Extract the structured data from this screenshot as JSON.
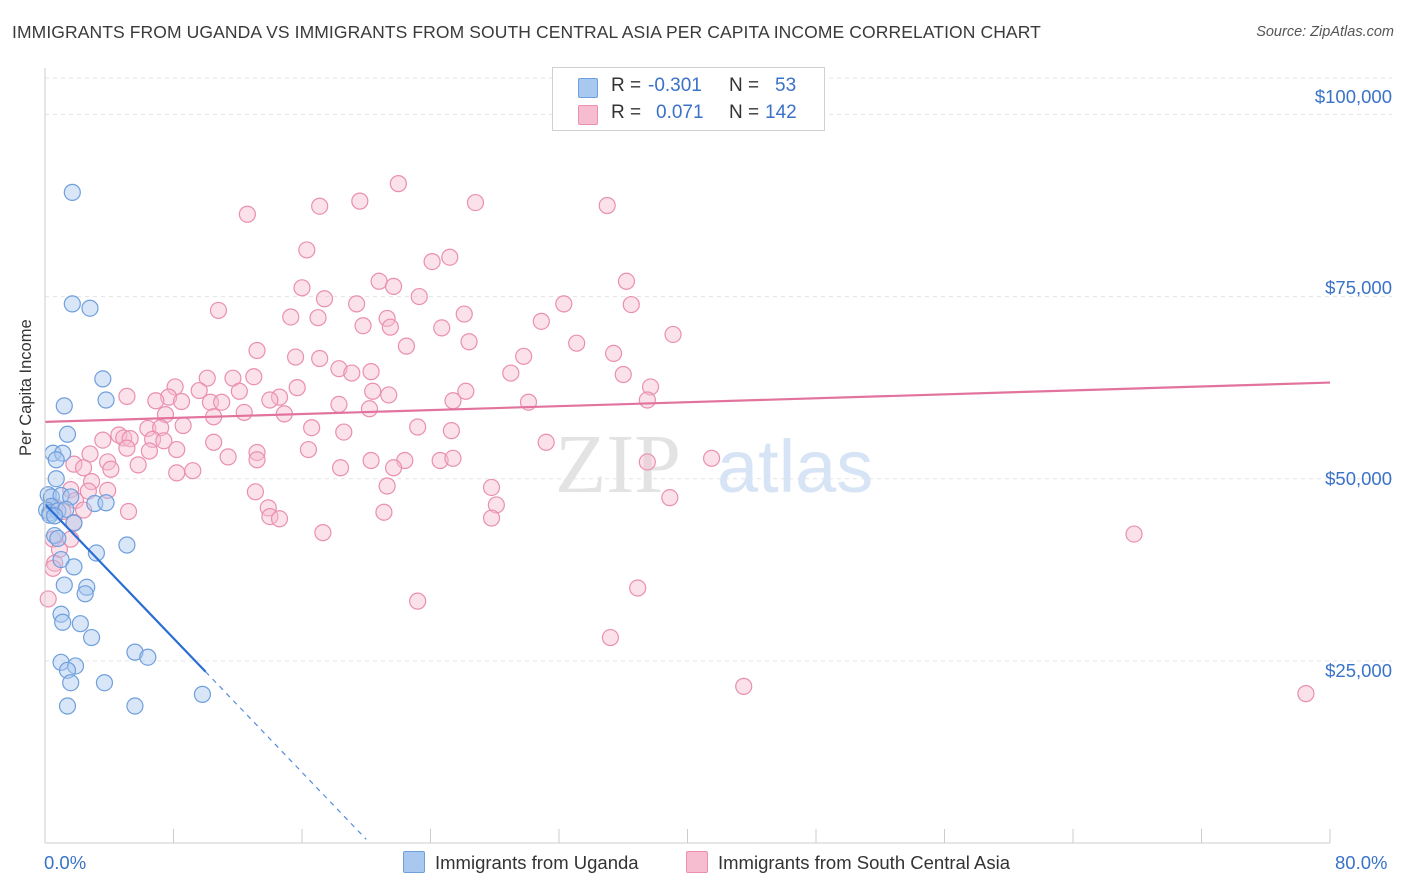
{
  "title": "IMMIGRANTS FROM UGANDA VS IMMIGRANTS FROM SOUTH CENTRAL ASIA PER CAPITA INCOME CORRELATION CHART",
  "source": "Source: ZipAtlas.com",
  "watermark": {
    "zip": "ZIP",
    "atlas": "atlas"
  },
  "colors": {
    "uganda_fill": "#a9c8f0",
    "uganda_stroke": "#6f9fdc",
    "uganda_line": "#2a6ed4",
    "sca_fill": "#f6bcd0",
    "sca_stroke": "#ea8fb0",
    "sca_line": "#e2739d",
    "grid": "#e4e4e4",
    "axis": "#cccccc",
    "accent": "#3a72c8"
  },
  "legend": {
    "rows": [
      {
        "r_label": "R =",
        "r_value": "-0.301",
        "n_label": "N =",
        "n_value": "53"
      },
      {
        "r_label": "R =",
        "r_value": "0.071",
        "n_label": "N =",
        "n_value": "142"
      }
    ]
  },
  "chart_data": {
    "type": "scatter",
    "title": "IMMIGRANTS FROM UGANDA VS IMMIGRANTS FROM SOUTH CENTRAL ASIA PER CAPITA INCOME CORRELATION CHART",
    "xlabel": "",
    "ylabel": "Per Capita Income",
    "xlim": [
      0,
      80
    ],
    "ylim": [
      0,
      105000
    ],
    "x_tick_labels": [
      "0.0%",
      "80.0%"
    ],
    "y_ticks": [
      25000,
      50000,
      75000,
      100000
    ],
    "y_tick_labels": [
      "$25,000",
      "$50,000",
      "$75,000",
      "$100,000"
    ],
    "legend_position": "top-center",
    "series": [
      {
        "name": "Immigrants from Uganda",
        "r": -0.301,
        "n": 53,
        "trend": {
          "x0": 0,
          "y0": 46500,
          "x1": 10,
          "y1": 23500,
          "dash_to_x": 20
        },
        "points": [
          [
            1.7,
            89300
          ],
          [
            1.7,
            74000
          ],
          [
            2.8,
            73400
          ],
          [
            3.6,
            63700
          ],
          [
            3.8,
            60800
          ],
          [
            1.2,
            60000
          ],
          [
            1.4,
            56100
          ],
          [
            0.5,
            53500
          ],
          [
            1.1,
            53500
          ],
          [
            0.7,
            52600
          ],
          [
            0.7,
            50000
          ],
          [
            0.2,
            47800
          ],
          [
            0.4,
            47500
          ],
          [
            1.0,
            47700
          ],
          [
            1.6,
            47500
          ],
          [
            3.1,
            46600
          ],
          [
            3.8,
            46700
          ],
          [
            0.4,
            46200
          ],
          [
            0.1,
            45700
          ],
          [
            0.3,
            45300
          ],
          [
            0.8,
            45600
          ],
          [
            1.3,
            45800
          ],
          [
            0.3,
            45000
          ],
          [
            0.6,
            44900
          ],
          [
            1.8,
            43900
          ],
          [
            0.6,
            42200
          ],
          [
            0.8,
            41800
          ],
          [
            5.1,
            40900
          ],
          [
            3.2,
            39800
          ],
          [
            1.0,
            38900
          ],
          [
            1.8,
            37900
          ],
          [
            1.2,
            35400
          ],
          [
            2.6,
            35100
          ],
          [
            2.5,
            34200
          ],
          [
            1.0,
            31400
          ],
          [
            1.1,
            30300
          ],
          [
            2.2,
            30100
          ],
          [
            2.9,
            28200
          ],
          [
            5.6,
            26200
          ],
          [
            6.4,
            25500
          ],
          [
            1.0,
            24800
          ],
          [
            1.9,
            24300
          ],
          [
            1.4,
            23700
          ],
          [
            1.6,
            22000
          ],
          [
            3.7,
            22000
          ],
          [
            9.8,
            20400
          ],
          [
            1.4,
            18800
          ],
          [
            5.6,
            18800
          ]
        ]
      },
      {
        "name": "Immigrants from South Central Asia",
        "r": 0.071,
        "n": 142,
        "trend": {
          "x0": 0,
          "y0": 57800,
          "x1": 80,
          "y1": 63200
        },
        "points": [
          [
            22.0,
            90500
          ],
          [
            19.6,
            88100
          ],
          [
            35.0,
            87500
          ],
          [
            26.8,
            87900
          ],
          [
            12.6,
            86300
          ],
          [
            17.1,
            87400
          ],
          [
            16.3,
            81400
          ],
          [
            25.2,
            80400
          ],
          [
            24.1,
            79800
          ],
          [
            36.2,
            77100
          ],
          [
            20.8,
            77100
          ],
          [
            21.7,
            76400
          ],
          [
            16.0,
            76200
          ],
          [
            23.3,
            75000
          ],
          [
            17.4,
            74700
          ],
          [
            19.4,
            74000
          ],
          [
            32.3,
            74000
          ],
          [
            36.5,
            73900
          ],
          [
            10.8,
            73100
          ],
          [
            15.3,
            72200
          ],
          [
            17.0,
            72100
          ],
          [
            26.1,
            72600
          ],
          [
            21.3,
            72000
          ],
          [
            30.9,
            71600
          ],
          [
            19.8,
            71000
          ],
          [
            21.5,
            70800
          ],
          [
            24.7,
            70700
          ],
          [
            39.1,
            69800
          ],
          [
            26.4,
            68800
          ],
          [
            22.5,
            68200
          ],
          [
            33.1,
            68600
          ],
          [
            35.4,
            67200
          ],
          [
            13.2,
            67600
          ],
          [
            15.6,
            66700
          ],
          [
            17.1,
            66500
          ],
          [
            29.8,
            66800
          ],
          [
            18.3,
            65100
          ],
          [
            19.1,
            64500
          ],
          [
            20.3,
            64700
          ],
          [
            29.0,
            64500
          ],
          [
            36.0,
            64300
          ],
          [
            10.1,
            63800
          ],
          [
            11.7,
            63800
          ],
          [
            13.0,
            64000
          ],
          [
            15.7,
            62500
          ],
          [
            8.1,
            62600
          ],
          [
            9.6,
            62100
          ],
          [
            20.4,
            62000
          ],
          [
            26.2,
            62000
          ],
          [
            12.1,
            62000
          ],
          [
            37.7,
            62600
          ],
          [
            5.1,
            61300
          ],
          [
            7.7,
            61200
          ],
          [
            14.6,
            61200
          ],
          [
            21.4,
            61500
          ],
          [
            6.9,
            60700
          ],
          [
            8.5,
            60600
          ],
          [
            10.3,
            60500
          ],
          [
            14.0,
            60800
          ],
          [
            18.3,
            60200
          ],
          [
            25.4,
            60700
          ],
          [
            30.1,
            60500
          ],
          [
            11.0,
            60500
          ],
          [
            37.5,
            60800
          ],
          [
            20.2,
            59600
          ],
          [
            12.4,
            59100
          ],
          [
            14.9,
            58900
          ],
          [
            7.5,
            58800
          ],
          [
            10.5,
            58500
          ],
          [
            8.6,
            57300
          ],
          [
            6.4,
            56900
          ],
          [
            7.2,
            57000
          ],
          [
            16.6,
            57000
          ],
          [
            23.2,
            57100
          ],
          [
            18.6,
            56400
          ],
          [
            4.6,
            56000
          ],
          [
            4.9,
            55600
          ],
          [
            3.6,
            55300
          ],
          [
            5.3,
            55500
          ],
          [
            10.5,
            55000
          ],
          [
            6.7,
            55400
          ],
          [
            7.4,
            55200
          ],
          [
            25.3,
            56600
          ],
          [
            31.2,
            55000
          ],
          [
            5.1,
            54200
          ],
          [
            6.5,
            53800
          ],
          [
            8.2,
            54000
          ],
          [
            13.2,
            53600
          ],
          [
            16.4,
            54000
          ],
          [
            2.8,
            53400
          ],
          [
            11.4,
            53000
          ],
          [
            20.3,
            52500
          ],
          [
            22.4,
            52500
          ],
          [
            24.6,
            52500
          ],
          [
            25.4,
            52800
          ],
          [
            13.2,
            52600
          ],
          [
            1.8,
            52000
          ],
          [
            3.9,
            52300
          ],
          [
            5.8,
            51900
          ],
          [
            2.4,
            51500
          ],
          [
            4.1,
            51300
          ],
          [
            9.2,
            51100
          ],
          [
            18.4,
            51500
          ],
          [
            21.7,
            51500
          ],
          [
            8.2,
            50800
          ],
          [
            37.5,
            52300
          ],
          [
            41.5,
            52800
          ],
          [
            2.9,
            49600
          ],
          [
            21.3,
            49000
          ],
          [
            27.8,
            48800
          ],
          [
            1.6,
            48500
          ],
          [
            2.7,
            48300
          ],
          [
            3.9,
            48400
          ],
          [
            13.1,
            48200
          ],
          [
            38.9,
            47400
          ],
          [
            1.9,
            47000
          ],
          [
            28.1,
            46400
          ],
          [
            0.6,
            46200
          ],
          [
            2.4,
            45700
          ],
          [
            1.1,
            45500
          ],
          [
            5.2,
            45500
          ],
          [
            13.9,
            46000
          ],
          [
            21.1,
            45400
          ],
          [
            14.0,
            44800
          ],
          [
            14.6,
            44500
          ],
          [
            27.8,
            44600
          ],
          [
            1.8,
            44000
          ],
          [
            17.3,
            42600
          ],
          [
            67.8,
            42400
          ],
          [
            0.5,
            41700
          ],
          [
            1.6,
            41700
          ],
          [
            0.9,
            40300
          ],
          [
            0.6,
            38400
          ],
          [
            0.5,
            37700
          ],
          [
            36.9,
            35000
          ],
          [
            23.2,
            33200
          ],
          [
            0.2,
            33500
          ],
          [
            35.2,
            28200
          ],
          [
            43.5,
            21500
          ],
          [
            78.5,
            20500
          ]
        ]
      }
    ]
  },
  "bottom_legend": [
    {
      "label": "Immigrants from Uganda"
    },
    {
      "label": "Immigrants from South Central Asia"
    }
  ]
}
